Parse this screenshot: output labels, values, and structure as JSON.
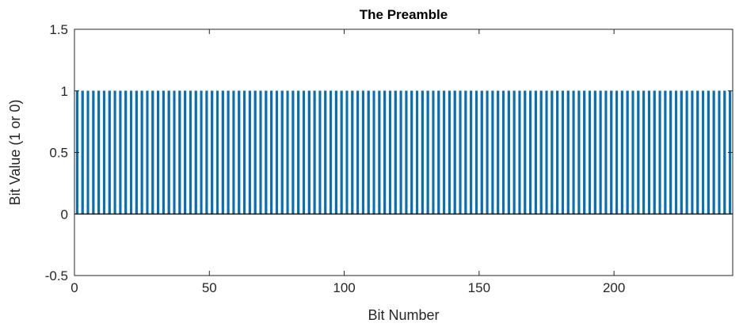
{
  "chart_data": {
    "type": "bar",
    "title": "The Preamble",
    "xlabel": "Bit Number",
    "ylabel": "Bit Value (1 or 0)",
    "xlim": [
      0,
      244
    ],
    "ylim": [
      -0.5,
      1.5
    ],
    "x_ticks": [
      0,
      50,
      100,
      150,
      200
    ],
    "x_tick_labels": [
      "0",
      "50",
      "100",
      "150",
      "200"
    ],
    "y_ticks": [
      -0.5,
      0,
      0.5,
      1,
      1.5
    ],
    "y_tick_labels": [
      "-0.5",
      "0",
      "0.5",
      "1",
      "1.5"
    ],
    "grid": false,
    "legend": "none",
    "bar_color": "#0072BD",
    "pattern": [
      1,
      0
    ],
    "n_bits": 244,
    "start_value": 1
  }
}
